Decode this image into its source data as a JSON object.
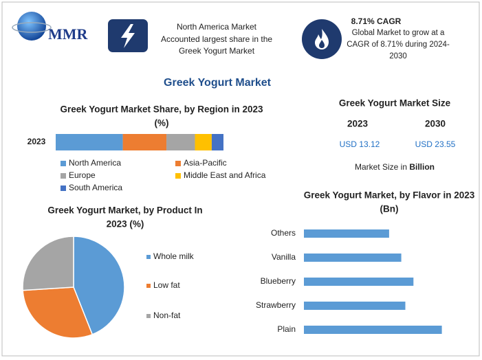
{
  "header": {
    "logo": "MMR",
    "highlight_1": [
      "North America Market",
      "Accounted largest share in the",
      "Greek Yogurt Market"
    ],
    "highlight_2": {
      "title": "8.71% CAGR",
      "text": [
        "Global Market to grow at a",
        "CAGR of 8.71% during 2024-",
        "2030"
      ]
    }
  },
  "title": "Greek Yogurt Market",
  "market_size": {
    "title": "Greek Yogurt Market Size",
    "years": [
      "2023",
      "2030"
    ],
    "values": [
      "USD 13.12",
      "USD 23.55"
    ],
    "note": "Market Size in",
    "unit": "Billion"
  },
  "chart_data": [
    {
      "type": "bar",
      "orientation": "horizontal",
      "stacked": true,
      "title": [
        "Greek Yogurt Market Share, by Region in 2023",
        "(%)"
      ],
      "categories": [
        "2023"
      ],
      "series": [
        {
          "name": "North America",
          "color": "#5b9bd5",
          "values": [
            40
          ]
        },
        {
          "name": "Asia-Pacific",
          "color": "#ed7d31",
          "values": [
            26
          ]
        },
        {
          "name": "Europe",
          "color": "#a5a5a5",
          "values": [
            17
          ]
        },
        {
          "name": "Middle East and Africa",
          "color": "#ffc000",
          "values": [
            10
          ]
        },
        {
          "name": "South America",
          "color": "#4472c4",
          "values": [
            7
          ]
        }
      ]
    },
    {
      "type": "pie",
      "title": [
        "Greek Yogurt Market, by Product In",
        "2023 (%)"
      ],
      "categories": [
        "Whole milk",
        "Low fat",
        "Non-fat"
      ],
      "values": [
        44,
        30,
        26
      ],
      "colors": [
        "#5b9bd5",
        "#ed7d31",
        "#a5a5a5"
      ]
    },
    {
      "type": "bar",
      "orientation": "horizontal",
      "title": [
        "Greek Yogurt Market, by Flavor in 2023",
        "(Bn)"
      ],
      "categories": [
        "Others",
        "Vanilla",
        "Blueberry",
        "Strawberry",
        "Plain"
      ],
      "values": [
        2.1,
        2.4,
        2.7,
        2.5,
        3.4
      ],
      "color": "#5b9bd5"
    }
  ]
}
